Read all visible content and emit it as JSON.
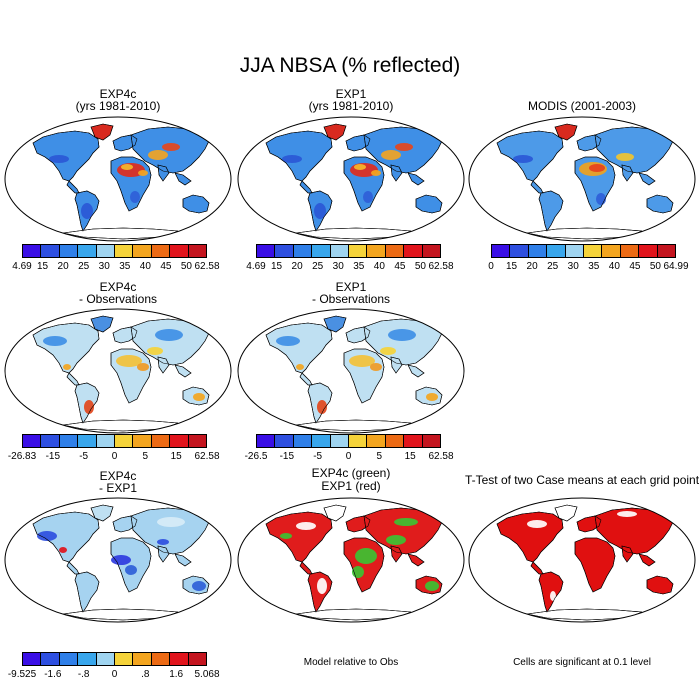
{
  "title": "JJA NBSA (% reflected)",
  "panels": [
    {
      "id": "exp4c",
      "title1": "EXP4c",
      "title2": "(yrs 1981-2010)",
      "scheme": "abs_model"
    },
    {
      "id": "exp1",
      "title1": "EXP1",
      "title2": "(yrs 1981-2010)",
      "scheme": "abs_model"
    },
    {
      "id": "modis",
      "title1": "MODIS (2001-2003)",
      "title2": "",
      "scheme": "abs_obs"
    },
    {
      "id": "exp4c_obs",
      "title1": "EXP4c",
      "title2": "- Observations",
      "scheme": "diff"
    },
    {
      "id": "exp1_obs",
      "title1": "EXP1",
      "title2": "- Observations",
      "scheme": "diff"
    },
    {
      "id": "exp4c_exp1",
      "title1": "EXP4c",
      "title2": "- EXP1",
      "scheme": "diff2"
    },
    {
      "id": "green_red",
      "title1": "EXP4c (green)",
      "title2": "EXP1 (red)",
      "scheme": "greenred"
    },
    {
      "id": "ttest",
      "title1": "T-Test of two Case means at each grid point",
      "title2": "",
      "scheme": "ttest"
    }
  ],
  "colorbars": [
    {
      "id": "cb1",
      "labels": [
        "4.69",
        "15",
        "20",
        "25",
        "30",
        "35",
        "40",
        "45",
        "50",
        "62.58"
      ]
    },
    {
      "id": "cb2",
      "labels": [
        "4.69",
        "15",
        "20",
        "25",
        "30",
        "35",
        "40",
        "45",
        "50",
        "62.58"
      ]
    },
    {
      "id": "cb3",
      "labels": [
        "0",
        "15",
        "20",
        "25",
        "30",
        "35",
        "40",
        "45",
        "50",
        "64.99"
      ]
    },
    {
      "id": "cb4",
      "labels": [
        "-26.83",
        "-15",
        "-5",
        "0",
        "5",
        "15",
        "62.58"
      ]
    },
    {
      "id": "cb5",
      "labels": [
        "-26.5",
        "-15",
        "-5",
        "0",
        "5",
        "15",
        "62.58"
      ]
    },
    {
      "id": "cb6",
      "labels": [
        "-9.525",
        "-1.6",
        "-.8",
        "0",
        ".8",
        "1.6",
        "5.068"
      ]
    }
  ],
  "colorbar_colors": [
    "#3a0fe6",
    "#2e4fe0",
    "#2f7fe8",
    "#38a6ec",
    "#9fd4f0",
    "#f5d33a",
    "#f3a51f",
    "#ec6a14",
    "#e1141c",
    "#c4151f"
  ],
  "notes": {
    "model_relative": "Model relative to Obs",
    "significance": "Cells are significant at 0.1 level"
  }
}
